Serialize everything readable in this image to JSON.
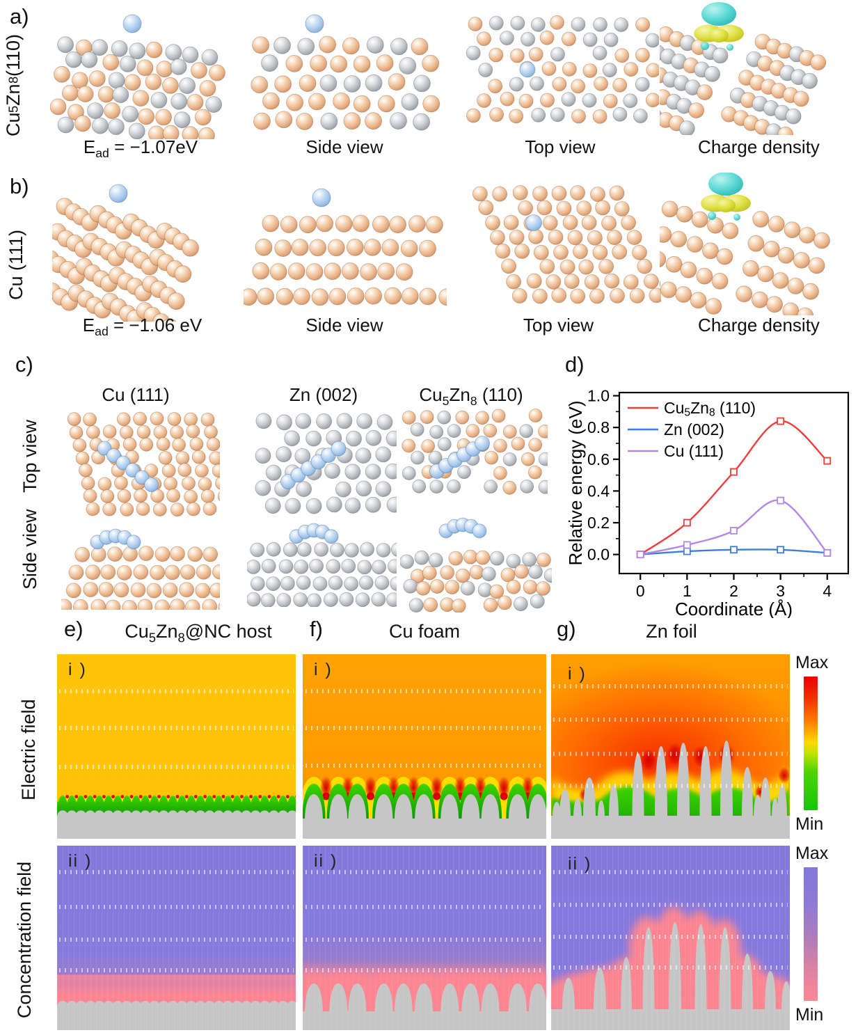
{
  "figure": {
    "panels_ab": [
      {
        "label": "a)",
        "row_label": "Cu~5~Zn~8~  (110)",
        "captions": [
          "E~ad~ = −1.07eV",
          "Side view",
          "Top view",
          "Charge density"
        ]
      },
      {
        "label": "b)",
        "row_label": "Cu (111)",
        "captions": [
          "E~ad~ = −1.06 eV",
          "Side view",
          "Top view",
          "Charge density"
        ]
      }
    ],
    "panel_c": {
      "label": "c)",
      "col_headers": [
        "Cu (111)",
        "Zn (002)",
        "Cu~5~Zn~8~ (110)"
      ],
      "row_labels": [
        "Top view",
        "Side view"
      ]
    },
    "panel_d": {
      "label": "d)"
    },
    "sim": {
      "col_panels": [
        {
          "label": "e)",
          "title": "Cu~5~Zn~8~@NC host"
        },
        {
          "label": "f)",
          "title": "Cu foam"
        },
        {
          "label": "g)",
          "title": "Zn foil"
        }
      ],
      "row_labels": [
        "Electric field",
        "Concentration field"
      ],
      "sub_labels": [
        "i )",
        "ii )"
      ],
      "colorbars": [
        {
          "label_max": "Max",
          "label_min": "Min",
          "gradient": [
            "#ee0000 0%",
            "#f23000 16%",
            "#ff7a00 33%",
            "#ffd800 49%",
            "#c4e300 57%",
            "#4fd400 71%",
            "#12c80c 100%"
          ]
        },
        {
          "label_max": "Max",
          "label_min": "Min",
          "gradient": [
            "#8277e1 0%",
            "#8f7ad5 28%",
            "#ae7dbb 52%",
            "#dd82a2 76%",
            "#ff8793 100%"
          ]
        }
      ]
    }
  },
  "chart_data": {
    "type": "line",
    "title": "",
    "xlabel": "Coordinate (Å)",
    "ylabel": "Relative energy (eV)",
    "xlim": [
      -0.45,
      4.45
    ],
    "ylim": [
      -0.12,
      1.02
    ],
    "xticks": [
      0,
      1,
      2,
      3,
      4
    ],
    "yticks": [
      0.0,
      0.2,
      0.4,
      0.6,
      0.8,
      1.0
    ],
    "grid": false,
    "legend_position": "top-left",
    "series": [
      {
        "name": "Cu~5~Zn~8~ (110)",
        "color": "#f23b3b",
        "x": [
          0,
          1,
          2,
          3,
          4
        ],
        "values": [
          0.0,
          0.2,
          0.52,
          0.84,
          0.59
        ],
        "yerr": 0.02
      },
      {
        "name": "Zn (002)",
        "color": "#3d7edb",
        "x": [
          0,
          1,
          2,
          3,
          4
        ],
        "values": [
          0.0,
          0.02,
          0.03,
          0.03,
          0.01
        ],
        "yerr": 0.012
      },
      {
        "name": "Cu (111)",
        "color": "#b488e2",
        "x": [
          0,
          1,
          2,
          3,
          4
        ],
        "values": [
          0.0,
          0.06,
          0.15,
          0.34,
          0.01
        ],
        "yerr": 0.015
      }
    ]
  },
  "colors": {
    "atom_gradients": {
      "cu": [
        "#ffffff",
        "#f6d6b6",
        "#e6ae83",
        "#cd8d62"
      ],
      "zn": [
        "#ffffff",
        "#dcdee1",
        "#b2b6bb",
        "#92979d"
      ],
      "ad": [
        "#ffffff",
        "#c9def4",
        "#9dc1e7",
        "#7ca8d6"
      ],
      "cy": [
        "#baf2ef",
        "#55d8d4",
        "#22b4b0"
      ],
      "ye": [
        "#f6f6aa",
        "#dfdf3e",
        "#bdbd14"
      ]
    },
    "field": {
      "efield_red": "#d80000",
      "efield_green_hi": "#3fd400",
      "efield_green_lo": "#0d9c00",
      "efield_yellow": "#ffe000",
      "cfield_pink": "#fd8591",
      "substrate": "#c6c6c6"
    }
  }
}
